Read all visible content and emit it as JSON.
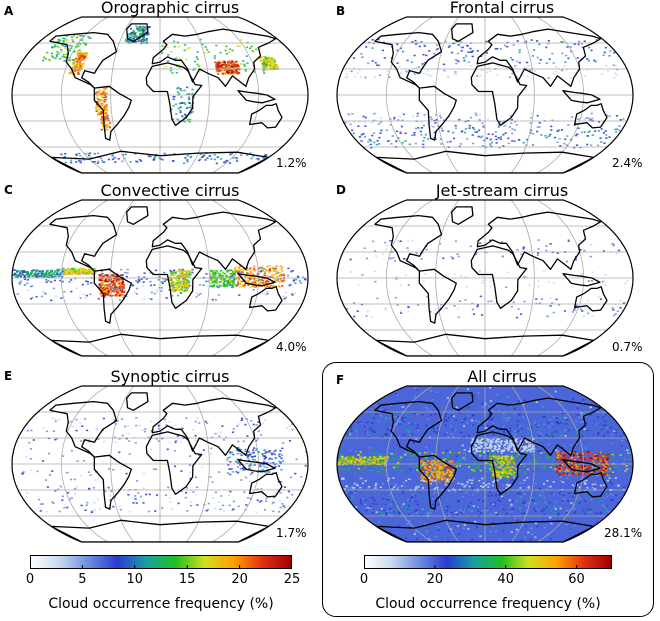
{
  "panels": [
    {
      "letter": "A",
      "title": "Orographic cirrus",
      "percent": "1.2%",
      "style": "orographic"
    },
    {
      "letter": "B",
      "title": "Frontal cirrus",
      "percent": "2.4%",
      "style": "frontal"
    },
    {
      "letter": "C",
      "title": "Convective cirrus",
      "percent": "4.0%",
      "style": "convective"
    },
    {
      "letter": "D",
      "title": "Jet-stream cirrus",
      "percent": "0.7%",
      "style": "jet"
    },
    {
      "letter": "E",
      "title": "Synoptic cirrus",
      "percent": "1.7%",
      "style": "synoptic"
    },
    {
      "letter": "F",
      "title": "All cirrus",
      "percent": "28.1%",
      "style": "all"
    }
  ],
  "colorbars": [
    {
      "label": "Cloud occurrence frequency (%)",
      "ticks": [
        "0",
        "5",
        "10",
        "15",
        "20",
        "25"
      ],
      "max": 25
    },
    {
      "label": "Cloud occurrence frequency (%)",
      "ticks": [
        "0",
        "20",
        "40",
        "60"
      ],
      "max": 70
    }
  ],
  "colors": {
    "cmap": [
      "#ffffff",
      "#c8d8f0",
      "#6a8ee0",
      "#2a3bd0",
      "#18a0a0",
      "#20c020",
      "#d0e020",
      "#ffa000",
      "#e03010",
      "#a00000"
    ],
    "coast": "#000000",
    "grid": "#aaaaaa"
  }
}
